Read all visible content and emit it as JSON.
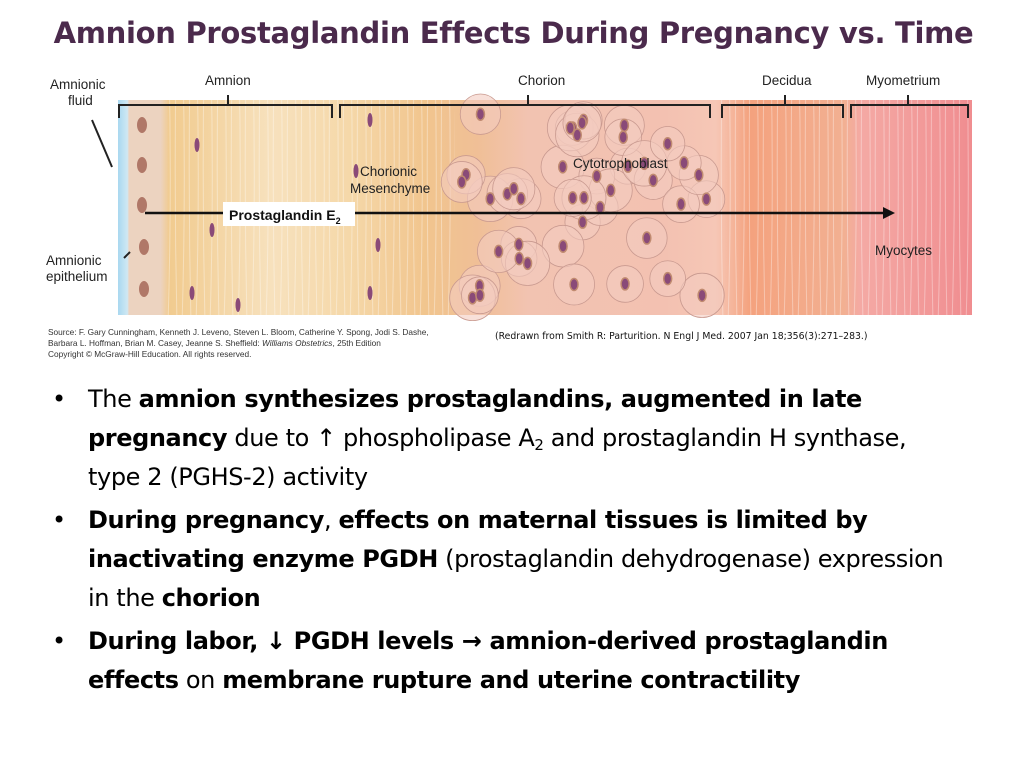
{
  "title": "Amnion Prostaglandin Effects During Pregnancy vs. Time",
  "figure": {
    "labels": {
      "amnionic_fluid_1": "Amnionic",
      "amnionic_fluid_2": "fluid",
      "amnion": "Amnion",
      "chorion": "Chorion",
      "decidua": "Decidua",
      "myometrium": "Myometrium",
      "chorionic_mesenchyme_1": "Chorionic",
      "chorionic_mesenchyme_2": "Mesenchyme",
      "cytotrophoblast": "Cytotrophoblast",
      "prostaglandin": "Prostaglandin E",
      "prostaglandin_sub": "2",
      "myocytes": "Myocytes",
      "amnionic_epithelium_1": "Amnionic",
      "amnionic_epithelium_2": "epithelium"
    },
    "colors": {
      "amnionic_fluid": "#a9d8f0",
      "amnion": "#f3d3a0",
      "chorion": "#f1b9a8",
      "decidua": "#f0906f",
      "myometrium": "#f2a0a0",
      "nuclei": "#8a4a78"
    }
  },
  "source": {
    "line1": "Source: F. Gary Cunningham, Kenneth J. Leveno, Steven L. Bloom, Catherine Y. Spong, Jodi S. Dashe,",
    "line2": "Barbara L. Hoffman, Brian M. Casey, Jeanne S. Sheffield: ",
    "book": "Williams Obstetrics",
    "edition": ", 25th Edition",
    "line3": "Copyright © McGraw-Hill Education.  All rights reserved."
  },
  "citation": "(Redrawn from Smith R: Parturition. N Engl J Med. 2007 Jan 18;356(3):271–283.)",
  "bullets": [
    {
      "parts": [
        "The ",
        "amnion synthesizes prostaglandins, augmented in late pregnancy",
        " due to ↑ phospholipase A",
        "2",
        " and prostaglandin H synthase, type 2 (PGHS-2) activity"
      ]
    },
    {
      "parts": [
        "During pregnancy",
        ", ",
        "effects on maternal tissues is limited by inactivating enzyme PGDH",
        " (prostaglandin dehydrogenase) expression in the ",
        "chorion"
      ]
    },
    {
      "parts": [
        "During labor, ↓ PGDH levels → amnion-derived prostaglandin effects",
        " on ",
        "membrane rupture and uterine contractility"
      ]
    }
  ],
  "bullet_symbol": "•"
}
